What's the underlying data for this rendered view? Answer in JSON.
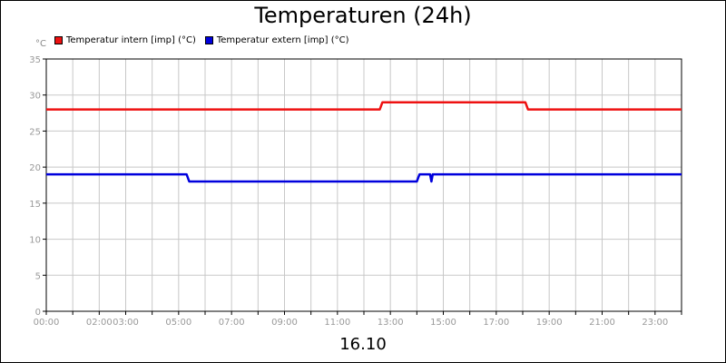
{
  "chart_data": {
    "type": "line",
    "title": "Temperaturen (24h)",
    "ylabel": "°C",
    "xlabel": "16.10",
    "ylim": [
      0,
      35
    ],
    "yticks": [
      "0",
      "5",
      "10",
      "15",
      "20",
      "25",
      "30",
      "35"
    ],
    "xlim_hours": [
      0,
      24
    ],
    "xtick_labels": [
      {
        "hour": 0,
        "label": "00:00"
      },
      {
        "hour": 2,
        "label": "02:00"
      },
      {
        "hour": 3,
        "label": "03:00"
      },
      {
        "hour": 5,
        "label": "05:00"
      },
      {
        "hour": 7,
        "label": "07:00"
      },
      {
        "hour": 9,
        "label": "09:00"
      },
      {
        "hour": 11,
        "label": "11:00"
      },
      {
        "hour": 13,
        "label": "13:00"
      },
      {
        "hour": 15,
        "label": "15:00"
      },
      {
        "hour": 17,
        "label": "17:00"
      },
      {
        "hour": 19,
        "label": "19:00"
      },
      {
        "hour": 21,
        "label": "21:00"
      },
      {
        "hour": 23,
        "label": "23:00"
      }
    ],
    "grid": true,
    "legend_position": "top-left",
    "series": [
      {
        "name": "Temperatur intern [imp] (°C)",
        "color": "#ee1111",
        "points": [
          [
            0,
            28
          ],
          [
            12.6,
            28
          ],
          [
            12.7,
            29
          ],
          [
            18.1,
            29
          ],
          [
            18.2,
            28
          ],
          [
            24,
            28
          ]
        ]
      },
      {
        "name": "Temperatur extern [imp] (°C)",
        "color": "#0000dd",
        "points": [
          [
            0,
            19
          ],
          [
            5.3,
            19
          ],
          [
            5.4,
            18
          ],
          [
            14.0,
            18
          ],
          [
            14.1,
            19
          ],
          [
            14.5,
            19
          ],
          [
            14.55,
            18
          ],
          [
            14.6,
            19
          ],
          [
            24,
            19
          ]
        ]
      }
    ]
  }
}
